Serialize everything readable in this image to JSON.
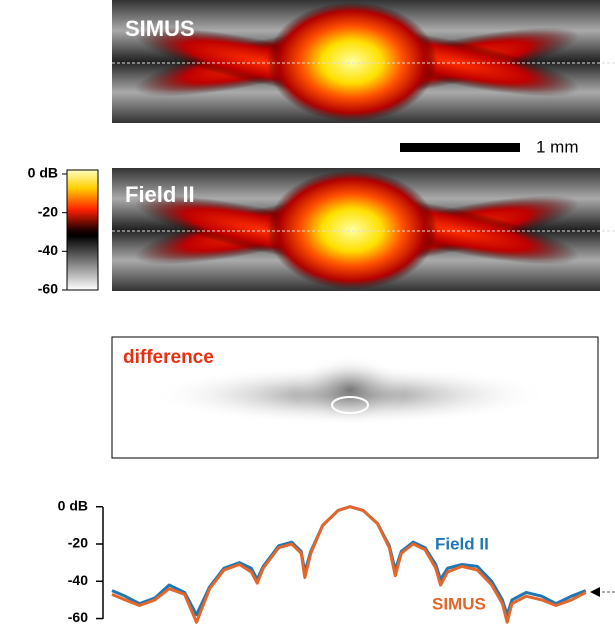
{
  "panels": [
    {
      "label": "SIMUS"
    },
    {
      "label": "Field II"
    },
    {
      "label": "difference"
    }
  ],
  "scale_bar": "1 mm",
  "colorbar": {
    "range": [
      -60,
      0
    ],
    "ticks": [
      {
        "value": 0,
        "label": "0 dB"
      },
      -20,
      -40,
      -60
    ]
  },
  "chart_data": {
    "type": "line",
    "x": [
      -2.0,
      -1.89,
      -1.77,
      -1.64,
      -1.52,
      -1.39,
      -1.29,
      -1.18,
      -1.06,
      -0.93,
      -0.83,
      -0.78,
      -0.73,
      -0.6,
      -0.49,
      -0.41,
      -0.38,
      -0.33,
      -0.23,
      -0.1,
      0,
      0.11,
      0.23,
      0.33,
      0.38,
      0.43,
      0.53,
      0.63,
      0.72,
      0.76,
      0.82,
      0.94,
      1.07,
      1.19,
      1.28,
      1.32,
      1.36,
      1.48,
      1.61,
      1.73,
      1.86,
      1.98
    ],
    "series": [
      {
        "name": "Field II",
        "color": "#1f77b4",
        "values": [
          -45,
          -48,
          -52,
          -49,
          -42,
          -46,
          -58,
          -43,
          -33,
          -30,
          -33,
          -39,
          -32,
          -21,
          -19,
          -24,
          -35,
          -24,
          -10,
          -2,
          0,
          -2,
          -9,
          -21,
          -34,
          -24,
          -19,
          -22,
          -31,
          -39,
          -33,
          -31,
          -32,
          -40,
          -50,
          -58,
          -50,
          -46,
          -48,
          -52,
          -48,
          -45
        ]
      },
      {
        "name": "SIMUS",
        "color": "#e3662a",
        "values": [
          -47,
          -50,
          -53,
          -50,
          -44,
          -47,
          -62,
          -44,
          -34,
          -31,
          -35,
          -41,
          -33,
          -22,
          -20,
          -25,
          -38,
          -25,
          -10,
          -2,
          0,
          -2,
          -9,
          -22,
          -37,
          -25,
          -20,
          -23,
          -33,
          -42,
          -35,
          -32,
          -34,
          -42,
          -52,
          -62,
          -52,
          -48,
          -50,
          -53,
          -50,
          -46
        ]
      }
    ],
    "xlim": [
      -2.0,
      2.1
    ],
    "ylim": [
      -64,
      2
    ],
    "yticks": [
      {
        "value": 0,
        "label": "0 dB"
      },
      -20,
      -40,
      -60
    ]
  }
}
